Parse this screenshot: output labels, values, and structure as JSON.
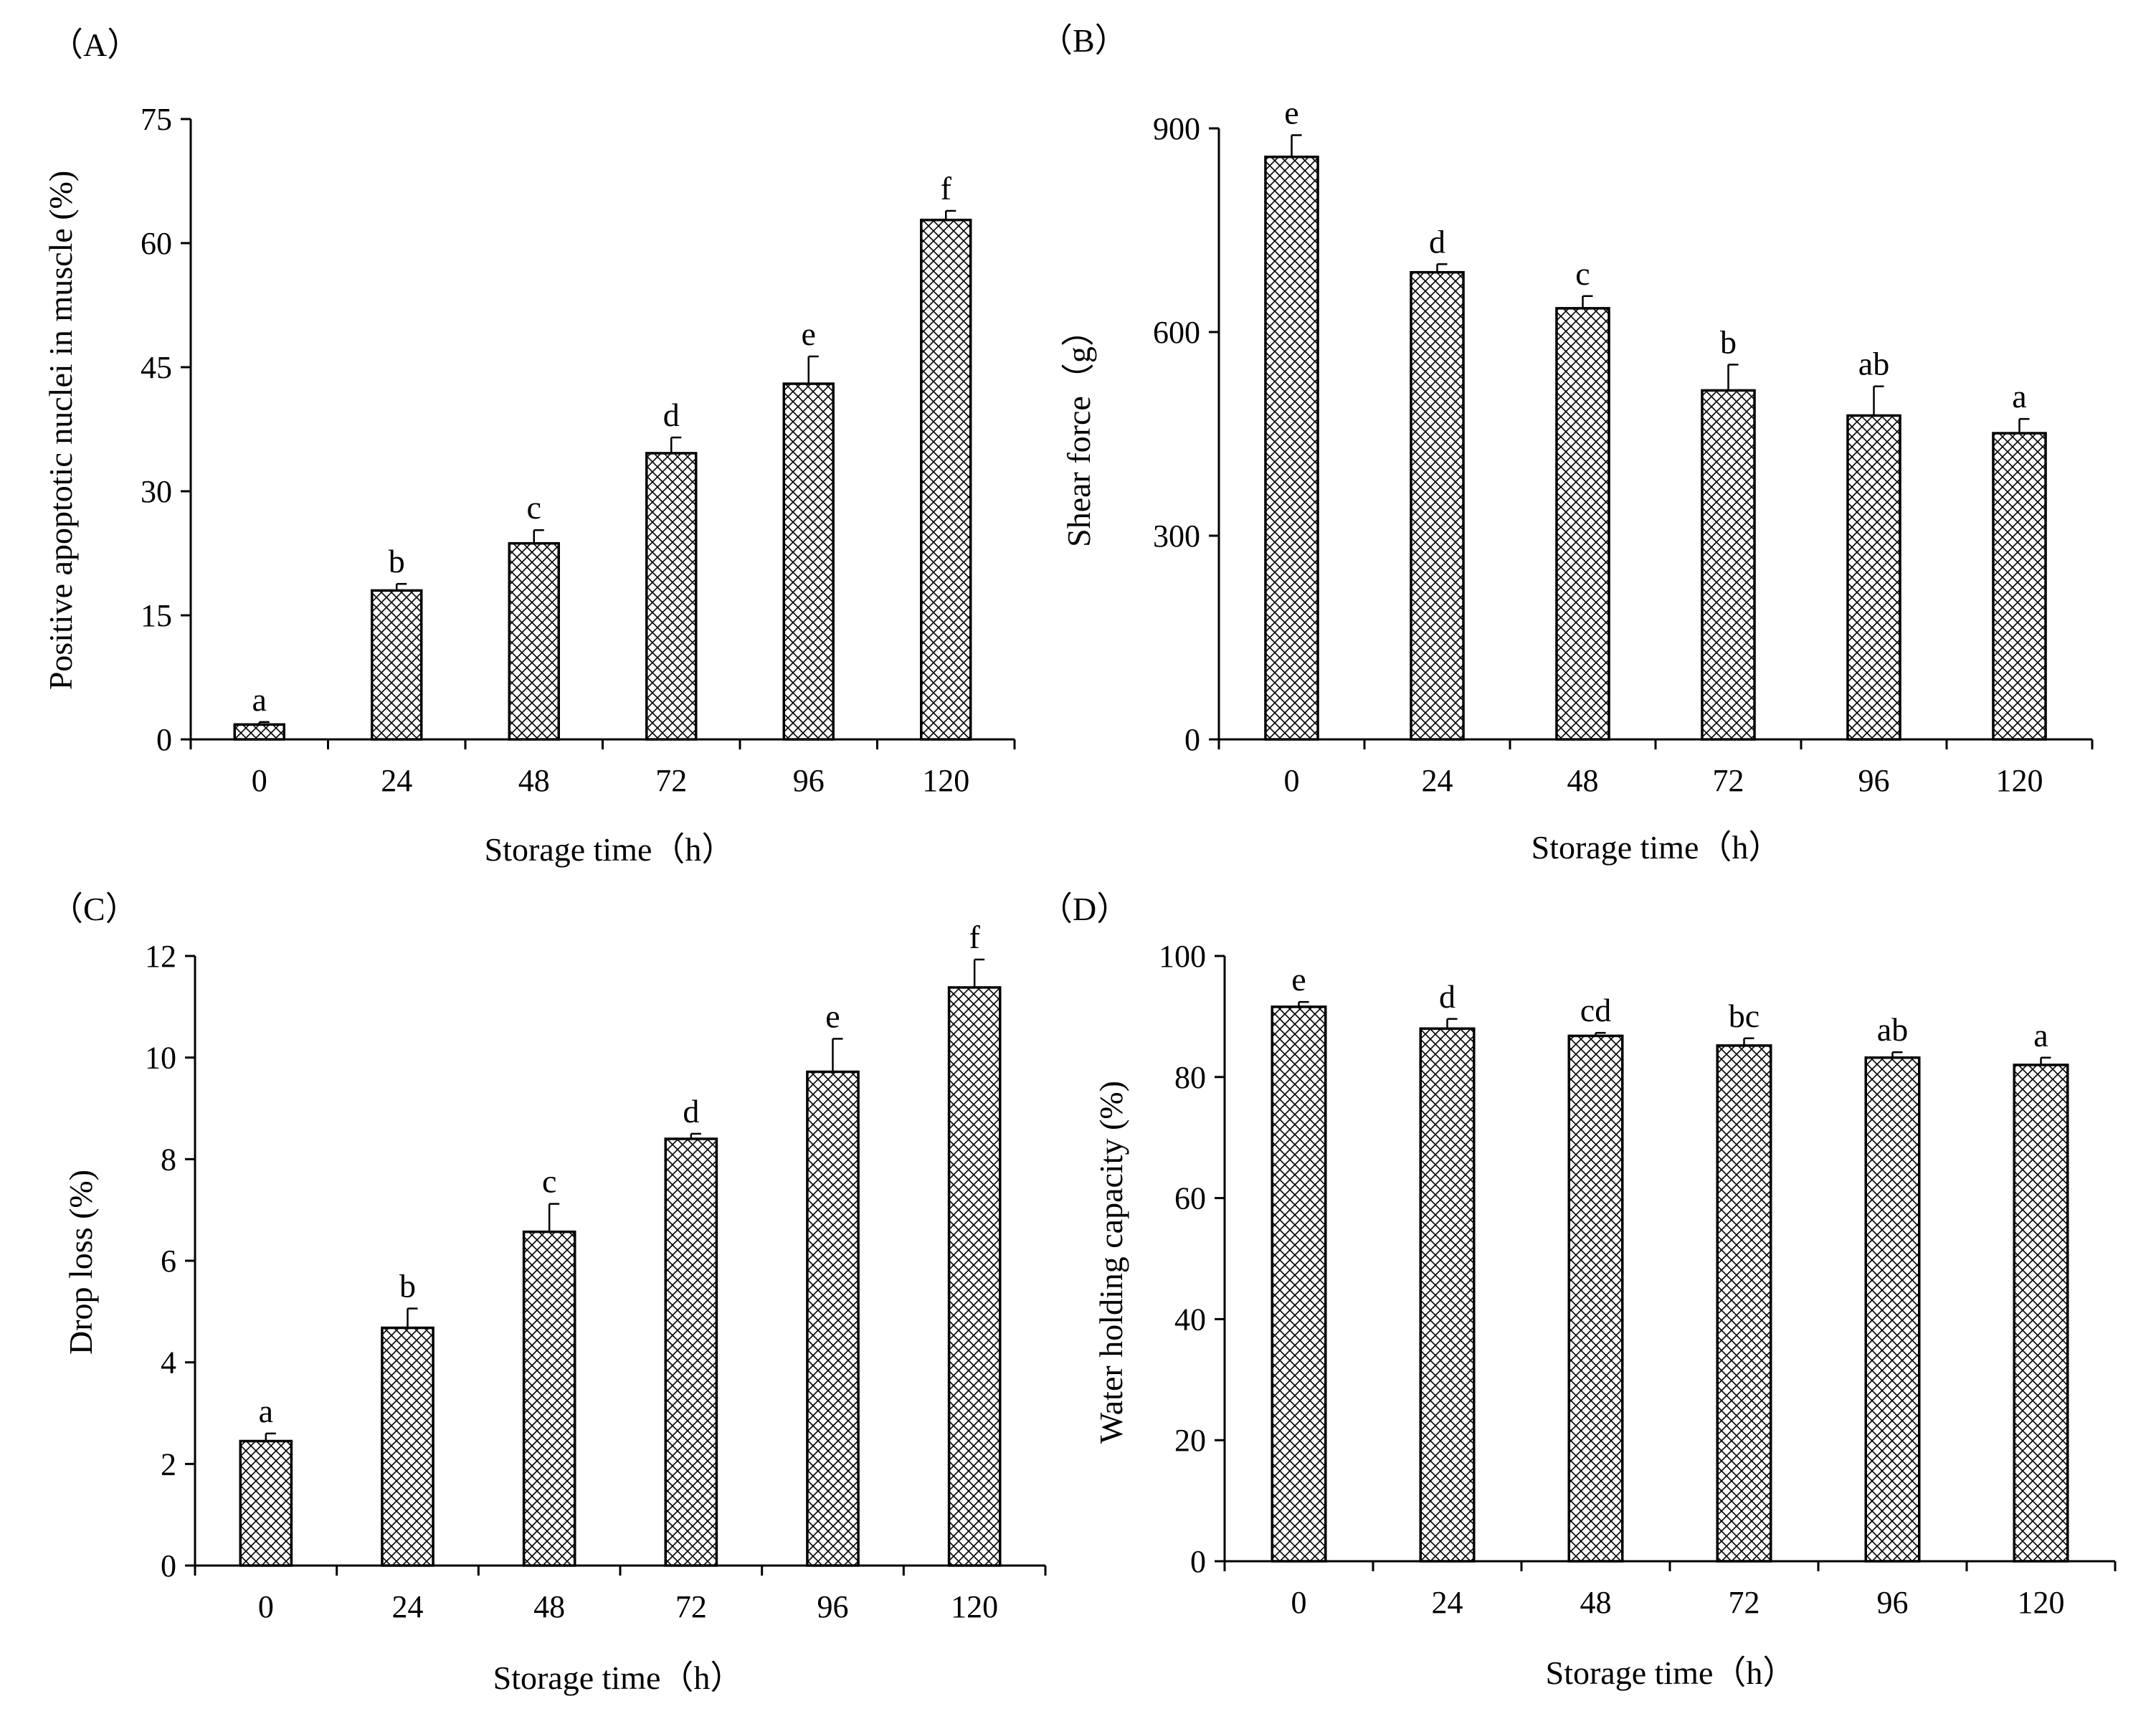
{
  "figure": {
    "bar_color": "#ffffff",
    "line_color": "#000000",
    "hatch_style": "crosshatch"
  },
  "chart_data": [
    {
      "panel_label": "（A）",
      "type": "bar",
      "categories": [
        "0",
        "24",
        "48",
        "72",
        "96",
        "120"
      ],
      "values": [
        1.8,
        18.0,
        23.7,
        34.6,
        43.0,
        62.8
      ],
      "errors": [
        0.3,
        0.8,
        1.6,
        1.9,
        3.3,
        1.1
      ],
      "significance": [
        "a",
        "b",
        "c",
        "d",
        "e",
        "f"
      ],
      "xlabel": "Storage time（h）",
      "ylabel": "Positive apoptotic nuclei in muscle (%)",
      "ylim": [
        0,
        75
      ],
      "yticks": [
        "0",
        "15",
        "30",
        "45",
        "60",
        "75"
      ]
    },
    {
      "panel_label": "（B）",
      "type": "bar",
      "categories": [
        "0",
        "24",
        "48",
        "72",
        "96",
        "120"
      ],
      "values": [
        858,
        688,
        635,
        514,
        477,
        451
      ],
      "errors": [
        32,
        12,
        18,
        38,
        43,
        21
      ],
      "significance": [
        "e",
        "d",
        "c",
        "b",
        "ab",
        "a"
      ],
      "xlabel": "Storage time（h）",
      "ylabel": "Shear force（g）",
      "ylim": [
        0,
        900
      ],
      "yticks": [
        "0",
        "300",
        "600",
        "900"
      ]
    },
    {
      "panel_label": "（C）",
      "type": "bar",
      "categories": [
        "0",
        "24",
        "48",
        "72",
        "96",
        "120"
      ],
      "values": [
        2.45,
        4.68,
        6.57,
        8.4,
        9.72,
        11.38
      ],
      "errors": [
        0.15,
        0.38,
        0.55,
        0.1,
        0.65,
        0.55
      ],
      "significance": [
        "a",
        "b",
        "c",
        "d",
        "e",
        "f"
      ],
      "xlabel": "Storage time（h）",
      "ylabel": "Drop loss (%)",
      "ylim": [
        0,
        12
      ],
      "yticks": [
        "0",
        "2",
        "4",
        "6",
        "8",
        "10",
        "12"
      ]
    },
    {
      "panel_label": "（D）",
      "type": "bar",
      "categories": [
        "0",
        "24",
        "48",
        "72",
        "96",
        "120"
      ],
      "values": [
        91.6,
        88.0,
        86.8,
        85.2,
        83.2,
        82.0
      ],
      "errors": [
        0.8,
        1.6,
        0.5,
        1.2,
        0.9,
        1.2
      ],
      "significance": [
        "e",
        "d",
        "cd",
        "bc",
        "ab",
        "a"
      ],
      "xlabel": "Storage time（h）",
      "ylabel": "Water holding capacity (%)",
      "ylim": [
        0,
        100
      ],
      "yticks": [
        "0",
        "20",
        "40",
        "60",
        "80",
        "100"
      ]
    }
  ]
}
